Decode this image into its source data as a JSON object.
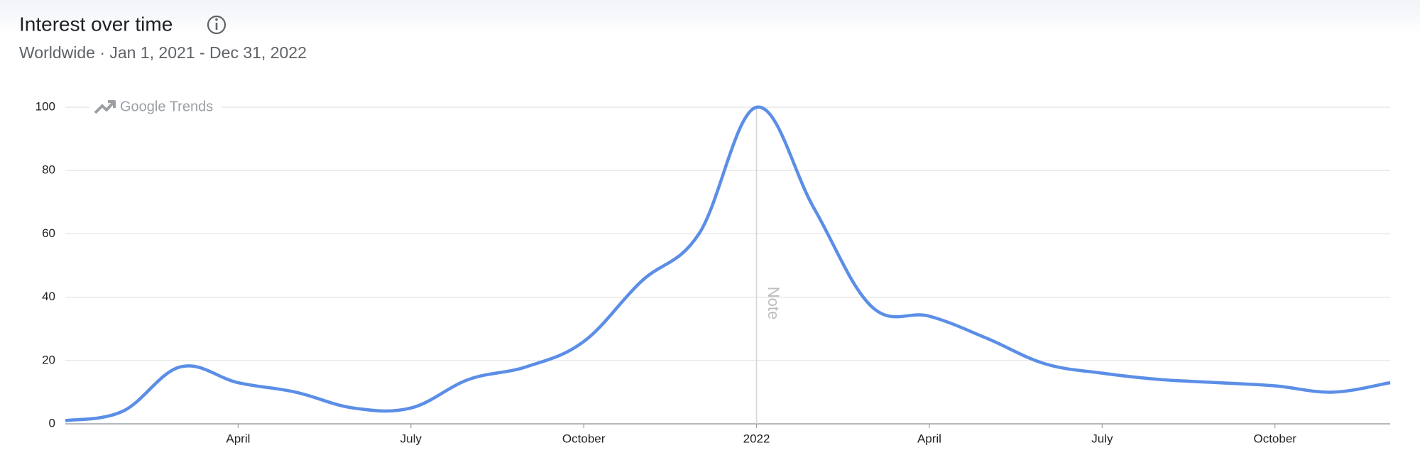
{
  "chart_data": {
    "type": "line",
    "title": "Interest over time",
    "subtitle": "Worldwide · Jan 1, 2021 - Dec 31, 2022",
    "watermark": "Google Trends",
    "annotation": {
      "x": "2022-01",
      "label": "Note"
    },
    "x": [
      "2021-01",
      "2021-02",
      "2021-03",
      "2021-04",
      "2021-05",
      "2021-06",
      "2021-07",
      "2021-08",
      "2021-09",
      "2021-10",
      "2021-11",
      "2021-12",
      "2022-01",
      "2022-02",
      "2022-03",
      "2022-04",
      "2022-05",
      "2022-06",
      "2022-07",
      "2022-08",
      "2022-09",
      "2022-10",
      "2022-11",
      "2022-12"
    ],
    "values": [
      1,
      4,
      18,
      13,
      10,
      5,
      5,
      14,
      18,
      26,
      45,
      60,
      100,
      68,
      37,
      34,
      27,
      19,
      16,
      14,
      13,
      12,
      10,
      13
    ],
    "color": "#5b8ee6",
    "ylim": [
      0,
      100
    ],
    "yticks": [
      0,
      20,
      40,
      60,
      80,
      100
    ],
    "xticks": [
      {
        "value": "2021-04",
        "label": "April"
      },
      {
        "value": "2021-07",
        "label": "July"
      },
      {
        "value": "2021-10",
        "label": "October"
      },
      {
        "value": "2022-01",
        "label": "2022"
      },
      {
        "value": "2022-04",
        "label": "April"
      },
      {
        "value": "2022-07",
        "label": "July"
      },
      {
        "value": "2022-10",
        "label": "October"
      }
    ],
    "grid": true
  }
}
